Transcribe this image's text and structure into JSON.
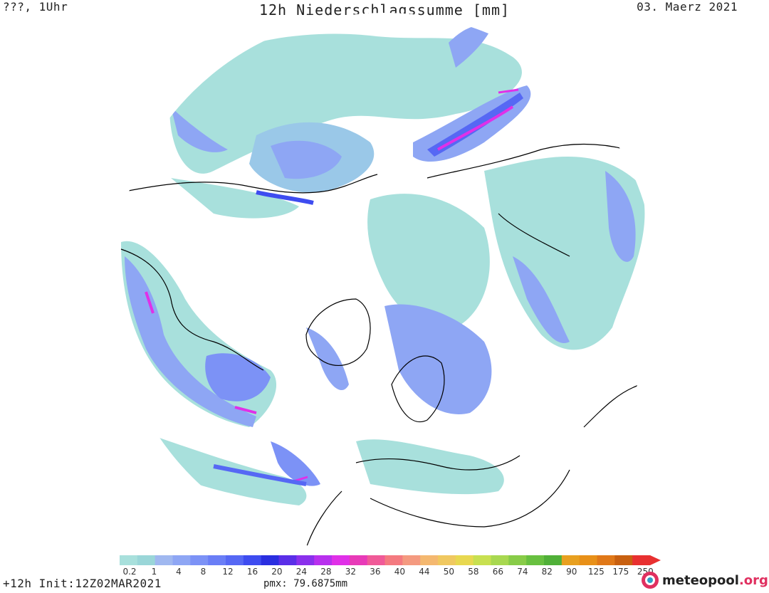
{
  "header": {
    "left": "???, 1Uhr",
    "title": "12h Niederschlagssumme [mm]",
    "date": "03. Maerz 2021"
  },
  "legend": {
    "labels": [
      "0.2",
      "1",
      "4",
      "8",
      "12",
      "16",
      "20",
      "24",
      "28",
      "32",
      "36",
      "40",
      "44",
      "50",
      "58",
      "66",
      "74",
      "82",
      "90",
      "125",
      "175",
      "250"
    ],
    "colors": [
      "#a8e0dc",
      "#9ad6d8",
      "#a0b8f0",
      "#8ea6f4",
      "#7c92f6",
      "#6a7ef6",
      "#5668f4",
      "#3e4cf0",
      "#2a2ee0",
      "#5a2ee8",
      "#8a30ec",
      "#b830ee",
      "#e030e8",
      "#e83ab8",
      "#f05a98",
      "#f47a80",
      "#f49a80",
      "#f4b870",
      "#f0c860",
      "#e8d850",
      "#c8e050",
      "#a8d850",
      "#88cc48",
      "#68c040",
      "#50b038",
      "#e8a020",
      "#e89018",
      "#e07818",
      "#c86010",
      "#e83030"
    ]
  },
  "footer": {
    "left": "+12h Init:12Z02MAR2021",
    "pmx": "pmx: 79.6875mm",
    "logo_main": "meteopool",
    "logo_suffix": ".org"
  }
}
